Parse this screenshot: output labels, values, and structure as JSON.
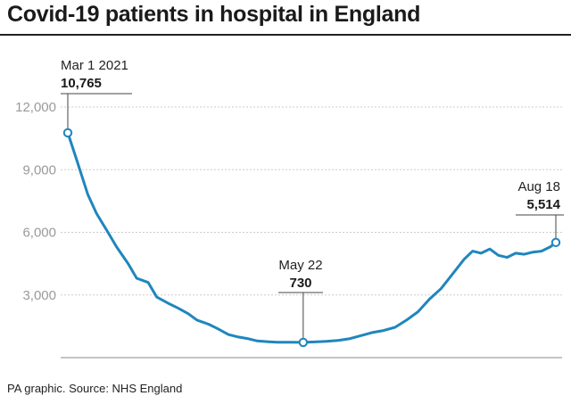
{
  "title": "Covid-19 patients in hospital in England",
  "source": "PA graphic. Source: NHS England",
  "colors": {
    "line": "#1f86bd",
    "grid": "#cccccc",
    "tick": "#9a9a9a",
    "text": "#1a1a1a"
  },
  "chart_data": {
    "type": "line",
    "title": "Covid-19 patients in hospital in England",
    "xlabel": "",
    "ylabel": "",
    "xlim": [
      "2021-03-01",
      "2021-08-18"
    ],
    "ylim": [
      0,
      12000
    ],
    "y_ticks": [
      0,
      3000,
      6000,
      9000,
      12000
    ],
    "y_tick_labels": [
      "",
      "3,000",
      "6,000",
      "9,000",
      "12,000"
    ],
    "grid": true,
    "series": [
      {
        "name": "",
        "x": [
          "2021-03-01",
          "2021-03-04",
          "2021-03-08",
          "2021-03-11",
          "2021-03-15",
          "2021-03-18",
          "2021-03-22",
          "2021-03-25",
          "2021-03-29",
          "2021-04-01",
          "2021-04-05",
          "2021-04-08",
          "2021-04-12",
          "2021-04-15",
          "2021-04-19",
          "2021-04-22",
          "2021-04-26",
          "2021-04-29",
          "2021-05-03",
          "2021-05-06",
          "2021-05-10",
          "2021-05-13",
          "2021-05-17",
          "2021-05-22",
          "2021-05-26",
          "2021-05-30",
          "2021-06-03",
          "2021-06-07",
          "2021-06-11",
          "2021-06-15",
          "2021-06-19",
          "2021-06-23",
          "2021-06-27",
          "2021-07-01",
          "2021-07-05",
          "2021-07-09",
          "2021-07-13",
          "2021-07-17",
          "2021-07-20",
          "2021-07-23",
          "2021-07-26",
          "2021-07-29",
          "2021-08-01",
          "2021-08-04",
          "2021-08-07",
          "2021-08-10",
          "2021-08-13",
          "2021-08-16",
          "2021-08-18"
        ],
        "values": [
          10765,
          9500,
          7800,
          6900,
          6000,
          5300,
          4500,
          3800,
          3600,
          2900,
          2600,
          2400,
          2100,
          1800,
          1600,
          1400,
          1100,
          1000,
          900,
          800,
          760,
          740,
          735,
          730,
          750,
          780,
          820,
          900,
          1050,
          1200,
          1300,
          1450,
          1800,
          2200,
          2800,
          3300,
          4000,
          4700,
          5100,
          5000,
          5200,
          4900,
          4800,
          5000,
          4950,
          5050,
          5100,
          5300,
          5514
        ]
      }
    ],
    "annotations": [
      {
        "label": "Mar 1 2021",
        "value": "10,765",
        "x": "2021-03-01",
        "y": 10765
      },
      {
        "label": "May 22",
        "value": "730",
        "x": "2021-05-22",
        "y": 730
      },
      {
        "label": "Aug 18",
        "value": "5,514",
        "x": "2021-08-18",
        "y": 5514
      }
    ]
  }
}
